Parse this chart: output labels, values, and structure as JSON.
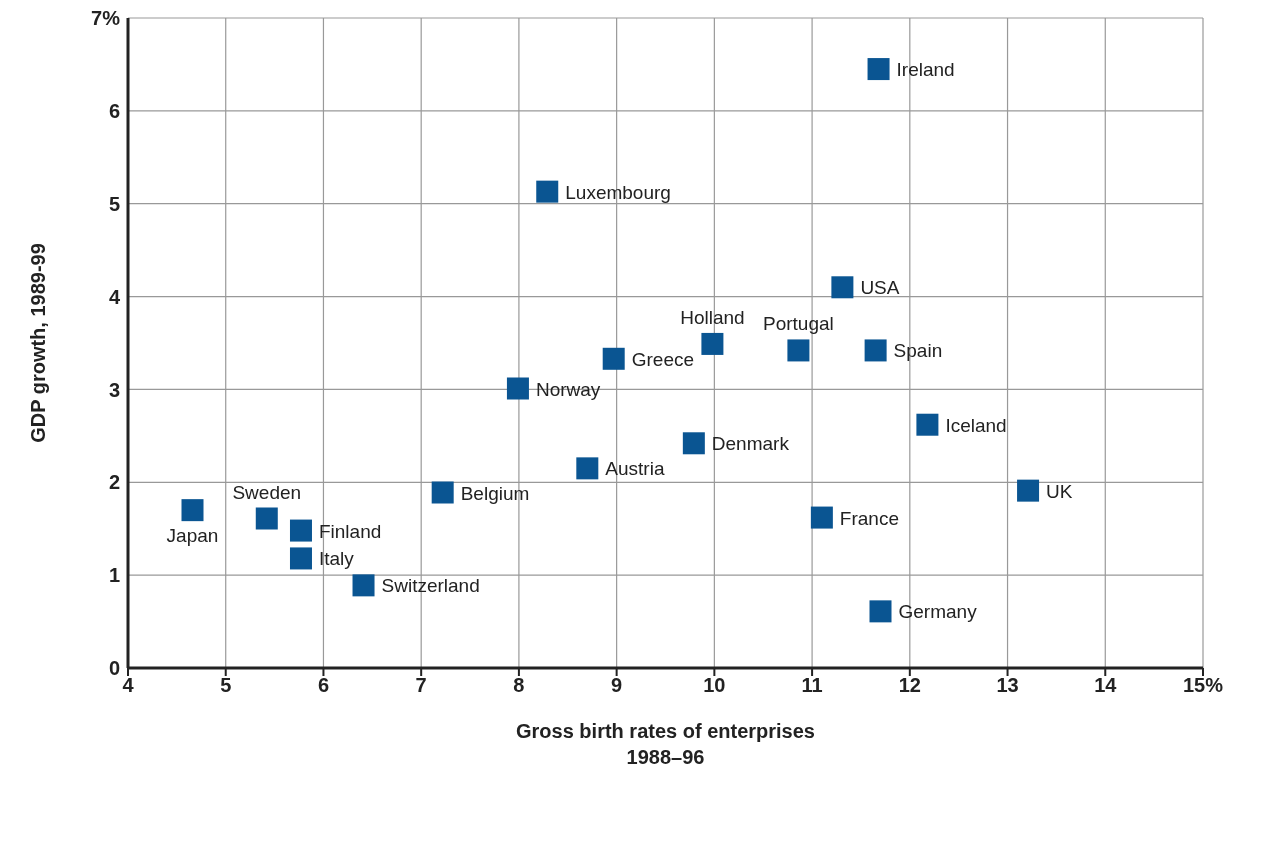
{
  "chart_data": {
    "type": "scatter",
    "xlabel": "Gross birth rates of enterprises\n1988–96",
    "ylabel": "GDP growth, 1989-99",
    "xlim": [
      4,
      15
    ],
    "xticks": [
      4,
      5,
      6,
      7,
      8,
      9,
      10,
      11,
      12,
      13,
      14,
      {
        "value": 15,
        "label": "15%"
      }
    ],
    "ylim": [
      0,
      7
    ],
    "yticks": [
      0,
      1,
      2,
      3,
      4,
      5,
      6,
      {
        "value": 7,
        "label": "7%"
      }
    ],
    "grid": true,
    "legend": false,
    "marker": "square",
    "series": [
      {
        "color": "#0a5592",
        "x": [
          4.66,
          5.42,
          5.77,
          5.77,
          6.41,
          7.22,
          7.99,
          8.29,
          8.7,
          8.97,
          9.79,
          9.98,
          10.86,
          11.1,
          11.31,
          11.65,
          11.68,
          11.7,
          12.18,
          13.21
        ],
        "values": [
          1.7,
          1.61,
          1.48,
          1.18,
          0.89,
          1.89,
          3.01,
          5.13,
          2.15,
          3.33,
          2.42,
          3.49,
          3.42,
          1.62,
          4.1,
          3.42,
          6.45,
          0.61,
          2.62,
          1.91
        ]
      }
    ],
    "annotations": [
      {
        "text": "Japan",
        "x": 4.66,
        "y": 1.7
      },
      {
        "text": "Sweden",
        "x": 5.42,
        "y": 1.61
      },
      {
        "text": "Finland",
        "x": 5.77,
        "y": 1.48
      },
      {
        "text": "Italy",
        "x": 5.77,
        "y": 1.18
      },
      {
        "text": "Switzerland",
        "x": 6.41,
        "y": 0.89
      },
      {
        "text": "Belgium",
        "x": 7.22,
        "y": 1.89
      },
      {
        "text": "Norway",
        "x": 7.99,
        "y": 3.01
      },
      {
        "text": "Luxembourg",
        "x": 8.29,
        "y": 5.13
      },
      {
        "text": "Austria",
        "x": 8.7,
        "y": 2.15
      },
      {
        "text": "Greece",
        "x": 8.97,
        "y": 3.33
      },
      {
        "text": "Denmark",
        "x": 9.79,
        "y": 2.42
      },
      {
        "text": "Holland",
        "x": 9.98,
        "y": 3.49
      },
      {
        "text": "Portugal",
        "x": 10.86,
        "y": 3.42
      },
      {
        "text": "France",
        "x": 11.1,
        "y": 1.62
      },
      {
        "text": "USA",
        "x": 11.31,
        "y": 4.1
      },
      {
        "text": "Spain",
        "x": 11.65,
        "y": 3.42
      },
      {
        "text": "Ireland",
        "x": 11.68,
        "y": 6.45
      },
      {
        "text": "Germany",
        "x": 11.7,
        "y": 0.61
      },
      {
        "text": "Iceland",
        "x": 12.18,
        "y": 2.62
      },
      {
        "text": "UK",
        "x": 13.21,
        "y": 1.91
      }
    ]
  }
}
